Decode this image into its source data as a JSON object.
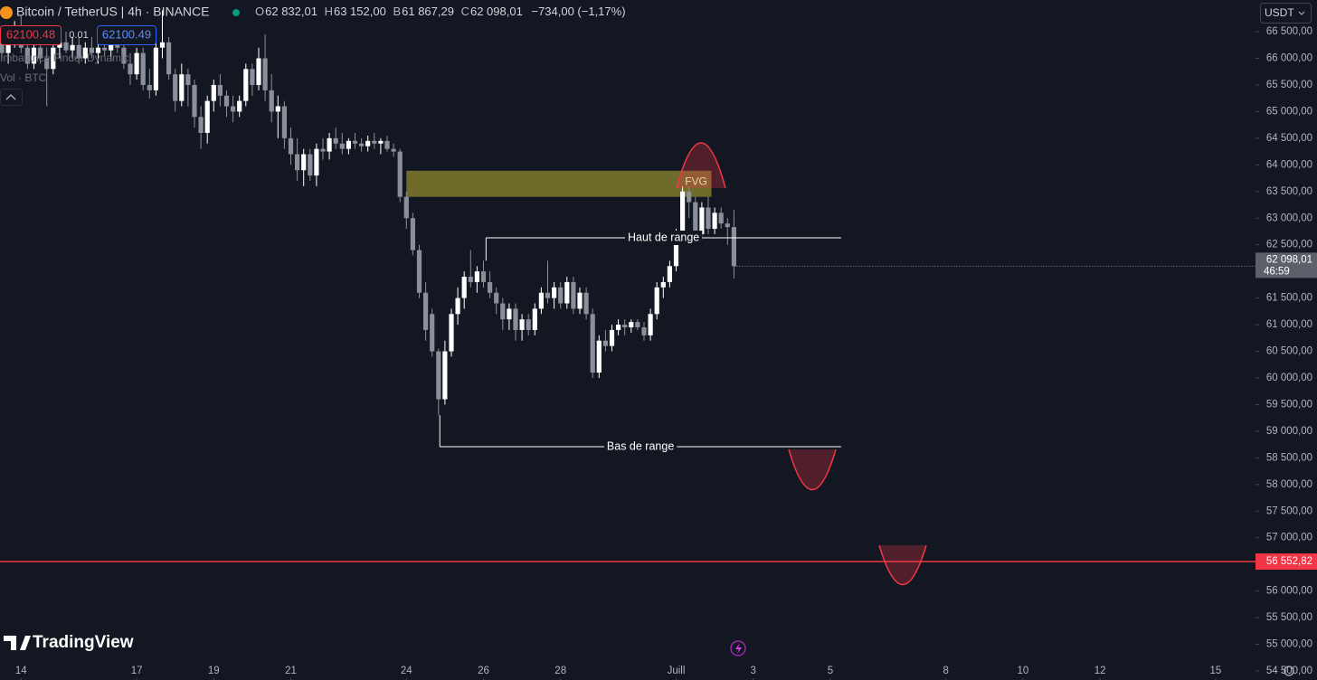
{
  "header": {
    "symbol": "Bitcoin / TetherUS | 4h · BINANCE",
    "ohlc": [
      {
        "key": "O",
        "value": "62 832,01"
      },
      {
        "key": "H",
        "value": "63 152,00"
      },
      {
        "key": "B",
        "value": "61 867,29"
      },
      {
        "key": "C",
        "value": "62 098,01"
      }
    ],
    "change": "−734,00 (−1,17%)",
    "sell": "62100.48",
    "spread": "0.01",
    "buy": "62100.49",
    "indicators": [
      "Imbalance Finder Dynamic",
      "Vol · BTC"
    ],
    "currency": "USDT",
    "logo": "TradingView"
  },
  "chart_data": {
    "type": "candlestick",
    "up_color": "#ffffff",
    "down_color": "#8b8f99",
    "xlim": [
      0,
      195
    ],
    "xticks": [
      {
        "value": 3,
        "label": "14"
      },
      {
        "value": 21,
        "label": "17"
      },
      {
        "value": 33,
        "label": "19"
      },
      {
        "value": 45,
        "label": "21"
      },
      {
        "value": 63,
        "label": "24"
      },
      {
        "value": 75,
        "label": "26"
      },
      {
        "value": 87,
        "label": "28"
      },
      {
        "value": 105,
        "label": "Juill"
      },
      {
        "value": 117,
        "label": "3"
      },
      {
        "value": 129,
        "label": "5"
      },
      {
        "value": 147,
        "label": "8"
      },
      {
        "value": 159,
        "label": "10"
      },
      {
        "value": 171,
        "label": "12"
      },
      {
        "value": 189,
        "label": "15"
      }
    ],
    "ylim": [
      54330,
      67095
    ],
    "yticks": [
      {
        "value": 66500,
        "label": "66 500,00"
      },
      {
        "value": 66000,
        "label": "66 000,00"
      },
      {
        "value": 65500,
        "label": "65 500,00"
      },
      {
        "value": 65000,
        "label": "65 000,00"
      },
      {
        "value": 64500,
        "label": "64 500,00"
      },
      {
        "value": 64000,
        "label": "64 000,00"
      },
      {
        "value": 63500,
        "label": "63 500,00"
      },
      {
        "value": 63000,
        "label": "63 000,00"
      },
      {
        "value": 62500,
        "label": "62 500,00"
      },
      {
        "value": 62000,
        "label": "62 000,00"
      },
      {
        "value": 61500,
        "label": "61 500,00"
      },
      {
        "value": 61000,
        "label": "61 000,00"
      },
      {
        "value": 60500,
        "label": "60 500,00"
      },
      {
        "value": 60000,
        "label": "60 000,00"
      },
      {
        "value": 59500,
        "label": "59 500,00"
      },
      {
        "value": 59000,
        "label": "59 000,00"
      },
      {
        "value": 58500,
        "label": "58 500,00"
      },
      {
        "value": 58000,
        "label": "58 000,00"
      },
      {
        "value": 57500,
        "label": "57 500,00"
      },
      {
        "value": 57000,
        "label": "57 000,00"
      },
      {
        "value": 56500,
        "label": "56 500,00"
      },
      {
        "value": 56000,
        "label": "56 000,00"
      },
      {
        "value": 55500,
        "label": "55 500,00"
      },
      {
        "value": 55000,
        "label": "55 000,00"
      },
      {
        "value": 54500,
        "label": "54 500,00"
      }
    ],
    "candles": [
      [
        66300,
        66500,
        66000,
        66100
      ],
      [
        66100,
        66400,
        65900,
        66300
      ],
      [
        66300,
        66700,
        66200,
        66600
      ],
      [
        66600,
        66800,
        66100,
        66200
      ],
      [
        66200,
        66400,
        65800,
        65900
      ],
      [
        65900,
        66300,
        65800,
        66200
      ],
      [
        66200,
        66500,
        65900,
        66000
      ],
      [
        66000,
        66200,
        65100,
        65800
      ],
      [
        65800,
        66300,
        65700,
        66200
      ],
      [
        66200,
        66400,
        66000,
        66300
      ],
      [
        66300,
        66500,
        66100,
        66150
      ],
      [
        66150,
        66400,
        66000,
        66250
      ],
      [
        66250,
        66400,
        65900,
        66000
      ],
      [
        66000,
        66300,
        65900,
        66200
      ],
      [
        66200,
        66400,
        66000,
        66100
      ],
      [
        66100,
        66300,
        65900,
        66200
      ],
      [
        66200,
        66400,
        66050,
        66150
      ],
      [
        66150,
        66350,
        65950,
        66300
      ],
      [
        66300,
        66500,
        66100,
        66200
      ],
      [
        66200,
        66300,
        65800,
        65900
      ],
      [
        65900,
        66100,
        65500,
        65700
      ],
      [
        65700,
        66200,
        65600,
        66100
      ],
      [
        66100,
        66200,
        65400,
        65500
      ],
      [
        65500,
        65800,
        65250,
        65400
      ],
      [
        65400,
        66300,
        65300,
        66200
      ],
      [
        66200,
        66900,
        66000,
        66300
      ],
      [
        66300,
        66400,
        65600,
        65700
      ],
      [
        65700,
        65800,
        65000,
        65200
      ],
      [
        65200,
        65900,
        65100,
        65700
      ],
      [
        65700,
        65800,
        65100,
        65500
      ],
      [
        65500,
        65600,
        64700,
        64900
      ],
      [
        64900,
        65100,
        64300,
        64600
      ],
      [
        64600,
        65300,
        64400,
        65200
      ],
      [
        65200,
        65600,
        65000,
        65500
      ],
      [
        65500,
        65700,
        65100,
        65300
      ],
      [
        65300,
        65400,
        64900,
        65100
      ],
      [
        65100,
        65300,
        64800,
        65000
      ],
      [
        65000,
        65300,
        64900,
        65200
      ],
      [
        65200,
        65900,
        65100,
        65800
      ],
      [
        65800,
        65900,
        65300,
        65500
      ],
      [
        65500,
        66200,
        65400,
        66000
      ],
      [
        66000,
        66450,
        65200,
        65400
      ],
      [
        65400,
        65700,
        64800,
        65000
      ],
      [
        65000,
        65300,
        64500,
        65100
      ],
      [
        65100,
        65200,
        64300,
        64500
      ],
      [
        64500,
        64700,
        64000,
        64200
      ],
      [
        64200,
        64500,
        63700,
        63900
      ],
      [
        63900,
        64300,
        63600,
        64200
      ],
      [
        64200,
        64300,
        63700,
        63800
      ],
      [
        63800,
        64400,
        63600,
        64300
      ],
      [
        64300,
        64500,
        64100,
        64250
      ],
      [
        64250,
        64600,
        64100,
        64500
      ],
      [
        64500,
        64700,
        64300,
        64400
      ],
      [
        64400,
        64600,
        64200,
        64300
      ],
      [
        64300,
        64500,
        64200,
        64450
      ],
      [
        64450,
        64600,
        64300,
        64400
      ],
      [
        64400,
        64500,
        64250,
        64350
      ],
      [
        64350,
        64550,
        64250,
        64450
      ],
      [
        64450,
        64600,
        64300,
        64400
      ],
      [
        64400,
        64500,
        64200,
        64450
      ],
      [
        64450,
        64550,
        64250,
        64300
      ],
      [
        64300,
        64400,
        64150,
        64250
      ],
      [
        64250,
        64300,
        63300,
        63400
      ],
      [
        63400,
        63500,
        62800,
        63000
      ],
      [
        63000,
        63100,
        62300,
        62400
      ],
      [
        62400,
        62500,
        61500,
        61600
      ],
      [
        61600,
        61800,
        60700,
        60900
      ],
      [
        61200,
        61300,
        60400,
        60500
      ],
      [
        60500,
        60550,
        59300,
        59600
      ],
      [
        59600,
        60700,
        59500,
        60500
      ],
      [
        60500,
        61300,
        60400,
        61200
      ],
      [
        61200,
        61700,
        61000,
        61500
      ],
      [
        61500,
        62000,
        61300,
        61900
      ],
      [
        61900,
        62400,
        61700,
        61800
      ],
      [
        61800,
        62100,
        61600,
        62000
      ],
      [
        62000,
        62200,
        61700,
        61800
      ],
      [
        61800,
        62000,
        61500,
        61600
      ],
      [
        61600,
        61700,
        61200,
        61400
      ],
      [
        61400,
        61500,
        60900,
        61100
      ],
      [
        61100,
        61400,
        60900,
        61300
      ],
      [
        61300,
        61400,
        60700,
        60900
      ],
      [
        60900,
        61200,
        60700,
        61100
      ],
      [
        61100,
        61200,
        60800,
        60900
      ],
      [
        60900,
        61400,
        60800,
        61300
      ],
      [
        61300,
        61700,
        61200,
        61600
      ],
      [
        61600,
        62200,
        61400,
        61500
      ],
      [
        61500,
        61800,
        61300,
        61700
      ],
      [
        61700,
        61800,
        61300,
        61400
      ],
      [
        61400,
        61900,
        61300,
        61800
      ],
      [
        61800,
        61900,
        61200,
        61300
      ],
      [
        61300,
        61700,
        61200,
        61600
      ],
      [
        61600,
        61700,
        61100,
        61200
      ],
      [
        61200,
        61300,
        60000,
        60100
      ],
      [
        60100,
        60800,
        60000,
        60700
      ],
      [
        60700,
        60900,
        60500,
        60600
      ],
      [
        60600,
        61000,
        60500,
        60900
      ],
      [
        60900,
        61100,
        60800,
        61000
      ],
      [
        61000,
        61100,
        60800,
        60950
      ],
      [
        60950,
        61100,
        60850,
        61050
      ],
      [
        61050,
        61100,
        60900,
        60950
      ],
      [
        60950,
        61050,
        60700,
        60800
      ],
      [
        60800,
        61300,
        60700,
        61200
      ],
      [
        61200,
        61800,
        61100,
        61700
      ],
      [
        61700,
        61900,
        61500,
        61800
      ],
      [
        61800,
        62200,
        61700,
        62100
      ],
      [
        62100,
        62800,
        62000,
        62700
      ],
      [
        62700,
        63600,
        62600,
        63500
      ],
      [
        63500,
        63600,
        63000,
        63300
      ],
      [
        63300,
        63400,
        62600,
        62700
      ],
      [
        62700,
        63300,
        62600,
        63200
      ],
      [
        63200,
        63400,
        62700,
        62800
      ],
      [
        62800,
        63200,
        62700,
        63100
      ],
      [
        63100,
        63200,
        62800,
        62900
      ],
      [
        62900,
        63000,
        62500,
        62832
      ],
      [
        62832,
        63152,
        61867,
        62098
      ]
    ],
    "zone": {
      "label": "FVG",
      "xlim": [
        63,
        110.5
      ],
      "ylim": [
        63400,
        63890
      ],
      "color": "#6f6b2b"
    },
    "range_lines": [
      {
        "label": "Haut de range",
        "value": 62630,
        "from": 75.4,
        "anchor": 62200,
        "to": 130.7
      },
      {
        "label": "Bas de range",
        "value": 58710,
        "from": 68.2,
        "anchor": 59300,
        "to": 130.7
      }
    ],
    "level": {
      "value": 56552.82,
      "label": "56 552,82",
      "color": "#f23645"
    },
    "last_price": {
      "value": 62098.01,
      "label": "62 098,01",
      "countdown": "46:59"
    }
  }
}
